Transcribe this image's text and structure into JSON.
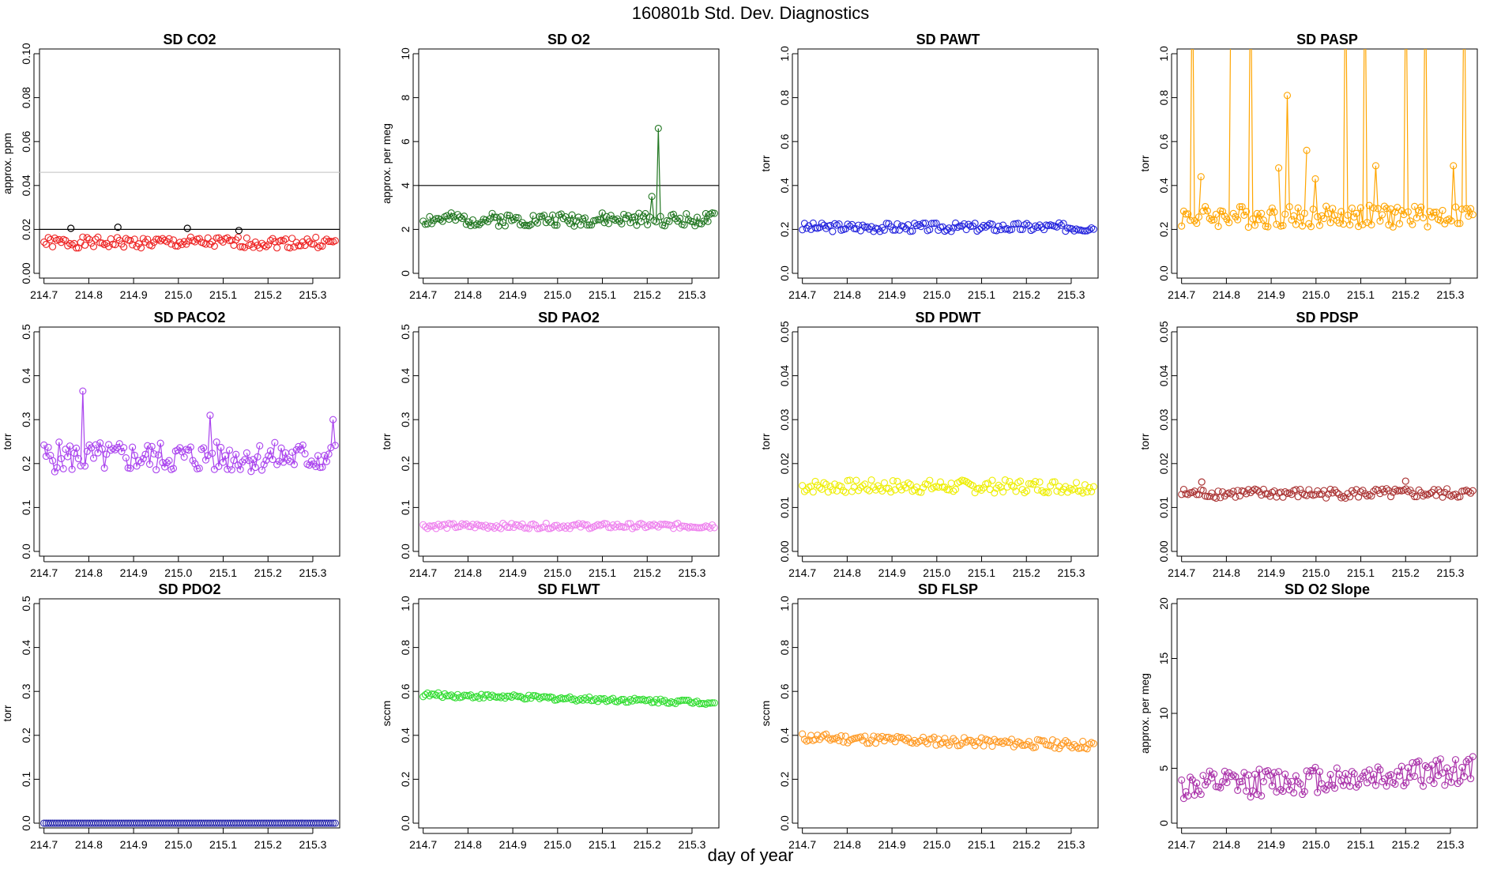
{
  "title": "160801b   Std. Dev. Diagnostics",
  "xlabel": "day of year",
  "chart_data": [
    {
      "type": "scatter",
      "title": "SD CO2",
      "ylabel": "approx. ppm",
      "xlim": [
        214.69,
        215.36
      ],
      "ylim": [
        0,
        0.1
      ],
      "yticks": [
        0,
        0.02,
        0.04,
        0.06,
        0.08,
        0.1
      ],
      "ytick_labels": [
        "0.00",
        "0.02",
        "0.04",
        "0.06",
        "0.08",
        "0.10"
      ],
      "xticks": [
        214.7,
        214.8,
        214.9,
        215.0,
        215.1,
        215.2,
        215.3
      ],
      "xtick_labels": [
        "214.7",
        "214.8",
        "214.9",
        "215.0",
        "215.1",
        "215.2",
        "215.3"
      ],
      "color": "#ee2222",
      "lines": false,
      "base": 0.014,
      "amp": 0.0025,
      "seed": 1,
      "hlines": [
        {
          "y": 0.02,
          "color": "#000000"
        },
        {
          "y": 0.046,
          "color": "#cccccc"
        }
      ],
      "outliers": [
        {
          "x": 214.76,
          "y": 0.0205,
          "color": "#000000"
        },
        {
          "x": 214.865,
          "y": 0.021,
          "color": "#000000"
        },
        {
          "x": 215.02,
          "y": 0.0205,
          "color": "#000000"
        },
        {
          "x": 215.135,
          "y": 0.0195,
          "color": "#000000"
        }
      ]
    },
    {
      "type": "line",
      "title": "SD O2",
      "ylabel": "approx. per meg",
      "xlim": [
        214.69,
        215.36
      ],
      "ylim": [
        0,
        10
      ],
      "yticks": [
        0,
        2,
        4,
        6,
        8,
        10
      ],
      "ytick_labels": [
        "0",
        "2",
        "4",
        "6",
        "8",
        "10"
      ],
      "xticks": [
        214.7,
        214.8,
        214.9,
        215.0,
        215.1,
        215.2,
        215.3
      ],
      "xtick_labels": [
        "214.7",
        "214.8",
        "214.9",
        "215.0",
        "215.1",
        "215.2",
        "215.3"
      ],
      "color": "#227722",
      "lines": true,
      "base": 2.45,
      "amp": 0.3,
      "seed": 2,
      "hlines": [
        {
          "y": 4,
          "color": "#000000"
        }
      ],
      "spikes": [
        {
          "x": 215.21,
          "y": 3.5
        },
        {
          "x": 215.225,
          "y": 6.6
        }
      ],
      "outliers": []
    },
    {
      "type": "scatter",
      "title": "SD PAWT",
      "ylabel": "torr",
      "xlim": [
        214.69,
        215.36
      ],
      "ylim": [
        0,
        1
      ],
      "yticks": [
        0,
        0.2,
        0.4,
        0.6,
        0.8,
        1
      ],
      "ytick_labels": [
        "0.0",
        "0.2",
        "0.4",
        "0.6",
        "0.8",
        "1.0"
      ],
      "xticks": [
        214.7,
        214.8,
        214.9,
        215.0,
        215.1,
        215.2,
        215.3
      ],
      "xtick_labels": [
        "214.7",
        "214.8",
        "214.9",
        "215.0",
        "215.1",
        "215.2",
        "215.3"
      ],
      "color": "#2222dd",
      "lines": false,
      "base": 0.21,
      "amp": 0.02,
      "seed": 3,
      "hlines": [],
      "outliers": []
    },
    {
      "type": "line",
      "title": "SD PASP",
      "ylabel": "torr",
      "xlim": [
        214.69,
        215.36
      ],
      "ylim": [
        0,
        1
      ],
      "yticks": [
        0,
        0.2,
        0.4,
        0.6,
        0.8,
        1
      ],
      "ytick_labels": [
        "0.0",
        "0.2",
        "0.4",
        "0.6",
        "0.8",
        "1.0"
      ],
      "xticks": [
        214.7,
        214.8,
        214.9,
        215.0,
        215.1,
        215.2,
        215.3
      ],
      "xtick_labels": [
        "214.7",
        "214.8",
        "214.9",
        "215.0",
        "215.1",
        "215.2",
        "215.3"
      ],
      "color": "#ffa500",
      "lines": true,
      "base": 0.26,
      "amp": 0.05,
      "seed": 4,
      "hlines": [],
      "spikes": [
        {
          "x": 214.725,
          "y": 1.5
        },
        {
          "x": 214.745,
          "y": 0.44
        },
        {
          "x": 214.81,
          "y": 1.5
        },
        {
          "x": 214.855,
          "y": 1.5
        },
        {
          "x": 214.915,
          "y": 0.48
        },
        {
          "x": 214.935,
          "y": 0.81
        },
        {
          "x": 214.98,
          "y": 0.56
        },
        {
          "x": 215.0,
          "y": 0.43
        },
        {
          "x": 215.065,
          "y": 1.5
        },
        {
          "x": 215.11,
          "y": 1.5
        },
        {
          "x": 215.135,
          "y": 0.49
        },
        {
          "x": 215.2,
          "y": 1.5
        },
        {
          "x": 215.245,
          "y": 1.5
        },
        {
          "x": 215.305,
          "y": 0.49
        },
        {
          "x": 215.33,
          "y": 1.5
        }
      ],
      "outliers": []
    },
    {
      "type": "line",
      "title": "SD PACO2",
      "ylabel": "torr",
      "xlim": [
        214.69,
        215.36
      ],
      "ylim": [
        0,
        0.5
      ],
      "yticks": [
        0,
        0.1,
        0.2,
        0.3,
        0.4,
        0.5
      ],
      "ytick_labels": [
        "0.0",
        "0.1",
        "0.2",
        "0.3",
        "0.4",
        "0.5"
      ],
      "xticks": [
        214.7,
        214.8,
        214.9,
        215.0,
        215.1,
        215.2,
        215.3
      ],
      "xtick_labels": [
        "214.7",
        "214.8",
        "214.9",
        "215.0",
        "215.1",
        "215.2",
        "215.3"
      ],
      "color": "#aa44ee",
      "lines": true,
      "base": 0.215,
      "amp": 0.035,
      "seed": 5,
      "hlines": [],
      "spikes": [
        {
          "x": 214.785,
          "y": 0.365
        },
        {
          "x": 215.07,
          "y": 0.31
        },
        {
          "x": 215.345,
          "y": 0.3
        }
      ],
      "outliers": []
    },
    {
      "type": "scatter",
      "title": "SD PAO2",
      "ylabel": "torr",
      "xlim": [
        214.69,
        215.36
      ],
      "ylim": [
        0,
        0.5
      ],
      "yticks": [
        0,
        0.1,
        0.2,
        0.3,
        0.4,
        0.5
      ],
      "ytick_labels": [
        "0.0",
        "0.1",
        "0.2",
        "0.3",
        "0.4",
        "0.5"
      ],
      "xticks": [
        214.7,
        214.8,
        214.9,
        215.0,
        215.1,
        215.2,
        215.3
      ],
      "xtick_labels": [
        "214.7",
        "214.8",
        "214.9",
        "215.0",
        "215.1",
        "215.2",
        "215.3"
      ],
      "color": "#ee82ee",
      "lines": false,
      "base": 0.058,
      "amp": 0.006,
      "seed": 6,
      "hlines": [],
      "outliers": []
    },
    {
      "type": "scatter",
      "title": "SD PDWT",
      "ylabel": "torr",
      "xlim": [
        214.69,
        215.36
      ],
      "ylim": [
        0,
        0.05
      ],
      "yticks": [
        0,
        0.01,
        0.02,
        0.03,
        0.04,
        0.05
      ],
      "ytick_labels": [
        "0.00",
        "0.01",
        "0.02",
        "0.03",
        "0.04",
        "0.05"
      ],
      "xticks": [
        214.7,
        214.8,
        214.9,
        215.0,
        215.1,
        215.2,
        215.3
      ],
      "xtick_labels": [
        "214.7",
        "214.8",
        "214.9",
        "215.0",
        "215.1",
        "215.2",
        "215.3"
      ],
      "color": "#eeee00",
      "lines": false,
      "base": 0.0148,
      "amp": 0.0015,
      "seed": 7,
      "hlines": [],
      "outliers": []
    },
    {
      "type": "scatter",
      "title": "SD PDSP",
      "ylabel": "torr",
      "xlim": [
        214.69,
        215.36
      ],
      "ylim": [
        0,
        0.05
      ],
      "yticks": [
        0,
        0.01,
        0.02,
        0.03,
        0.04,
        0.05
      ],
      "ytick_labels": [
        "0.00",
        "0.01",
        "0.02",
        "0.03",
        "0.04",
        "0.05"
      ],
      "xticks": [
        214.7,
        214.8,
        214.9,
        215.0,
        215.1,
        215.2,
        215.3
      ],
      "xtick_labels": [
        "214.7",
        "214.8",
        "214.9",
        "215.0",
        "215.1",
        "215.2",
        "215.3"
      ],
      "color": "#aa3333",
      "lines": false,
      "base": 0.0132,
      "amp": 0.0011,
      "seed": 8,
      "hlines": [],
      "outliers": [
        {
          "x": 214.745,
          "y": 0.0158
        },
        {
          "x": 215.2,
          "y": 0.016
        }
      ]
    },
    {
      "type": "scatter",
      "title": "SD PDO2",
      "ylabel": "torr",
      "xlim": [
        214.69,
        215.36
      ],
      "ylim": [
        0,
        0.5
      ],
      "yticks": [
        0,
        0.1,
        0.2,
        0.3,
        0.4,
        0.5
      ],
      "ytick_labels": [
        "0.0",
        "0.1",
        "0.2",
        "0.3",
        "0.4",
        "0.5"
      ],
      "xticks": [
        214.7,
        214.8,
        214.9,
        215.0,
        215.1,
        215.2,
        215.3
      ],
      "xtick_labels": [
        "214.7",
        "214.8",
        "214.9",
        "215.0",
        "215.1",
        "215.2",
        "215.3"
      ],
      "color": "#2222aa",
      "lines": false,
      "base": 0.0,
      "amp": 0.0,
      "seed": 9,
      "hlines": [],
      "outliers": []
    },
    {
      "type": "scatter",
      "title": "SD FLWT",
      "ylabel": "sccm",
      "xlim": [
        214.69,
        215.36
      ],
      "ylim": [
        0,
        1
      ],
      "yticks": [
        0,
        0.2,
        0.4,
        0.6,
        0.8,
        1
      ],
      "ytick_labels": [
        "0.0",
        "0.2",
        "0.4",
        "0.6",
        "0.8",
        "1.0"
      ],
      "xticks": [
        214.7,
        214.8,
        214.9,
        215.0,
        215.1,
        215.2,
        215.3
      ],
      "xtick_labels": [
        "214.7",
        "214.8",
        "214.9",
        "215.0",
        "215.1",
        "215.2",
        "215.3"
      ],
      "color": "#33dd33",
      "lines": false,
      "base": 0.565,
      "amp": 0.01,
      "seed": 10,
      "trend": [
        0.585,
        0.55
      ],
      "hlines": [],
      "outliers": []
    },
    {
      "type": "scatter",
      "title": "SD FLSP",
      "ylabel": "sccm",
      "xlim": [
        214.69,
        215.36
      ],
      "ylim": [
        0,
        1
      ],
      "yticks": [
        0,
        0.2,
        0.4,
        0.6,
        0.8,
        1
      ],
      "ytick_labels": [
        "0.0",
        "0.2",
        "0.4",
        "0.6",
        "0.8",
        "1.0"
      ],
      "xticks": [
        214.7,
        214.8,
        214.9,
        215.0,
        215.1,
        215.2,
        215.3
      ],
      "xtick_labels": [
        "214.7",
        "214.8",
        "214.9",
        "215.0",
        "215.1",
        "215.2",
        "215.3"
      ],
      "color": "#ff9922",
      "lines": false,
      "base": 0.37,
      "amp": 0.02,
      "seed": 11,
      "trend": [
        0.39,
        0.355
      ],
      "hlines": [],
      "outliers": []
    },
    {
      "type": "line",
      "title": "SD O2 Slope",
      "ylabel": "approx. per meg",
      "xlim": [
        214.69,
        215.36
      ],
      "ylim": [
        0,
        20
      ],
      "yticks": [
        0,
        5,
        10,
        15,
        20
      ],
      "ytick_labels": [
        "0",
        "5",
        "10",
        "15",
        "20"
      ],
      "xticks": [
        214.7,
        214.8,
        214.9,
        215.0,
        215.1,
        215.2,
        215.3
      ],
      "xtick_labels": [
        "214.7",
        "214.8",
        "214.9",
        "215.0",
        "215.1",
        "215.2",
        "215.3"
      ],
      "color": "#aa33aa",
      "lines": true,
      "base": 4.0,
      "amp": 1.3,
      "seed": 12,
      "trend": [
        3.3,
        4.8
      ],
      "hlines": [],
      "outliers": []
    }
  ]
}
